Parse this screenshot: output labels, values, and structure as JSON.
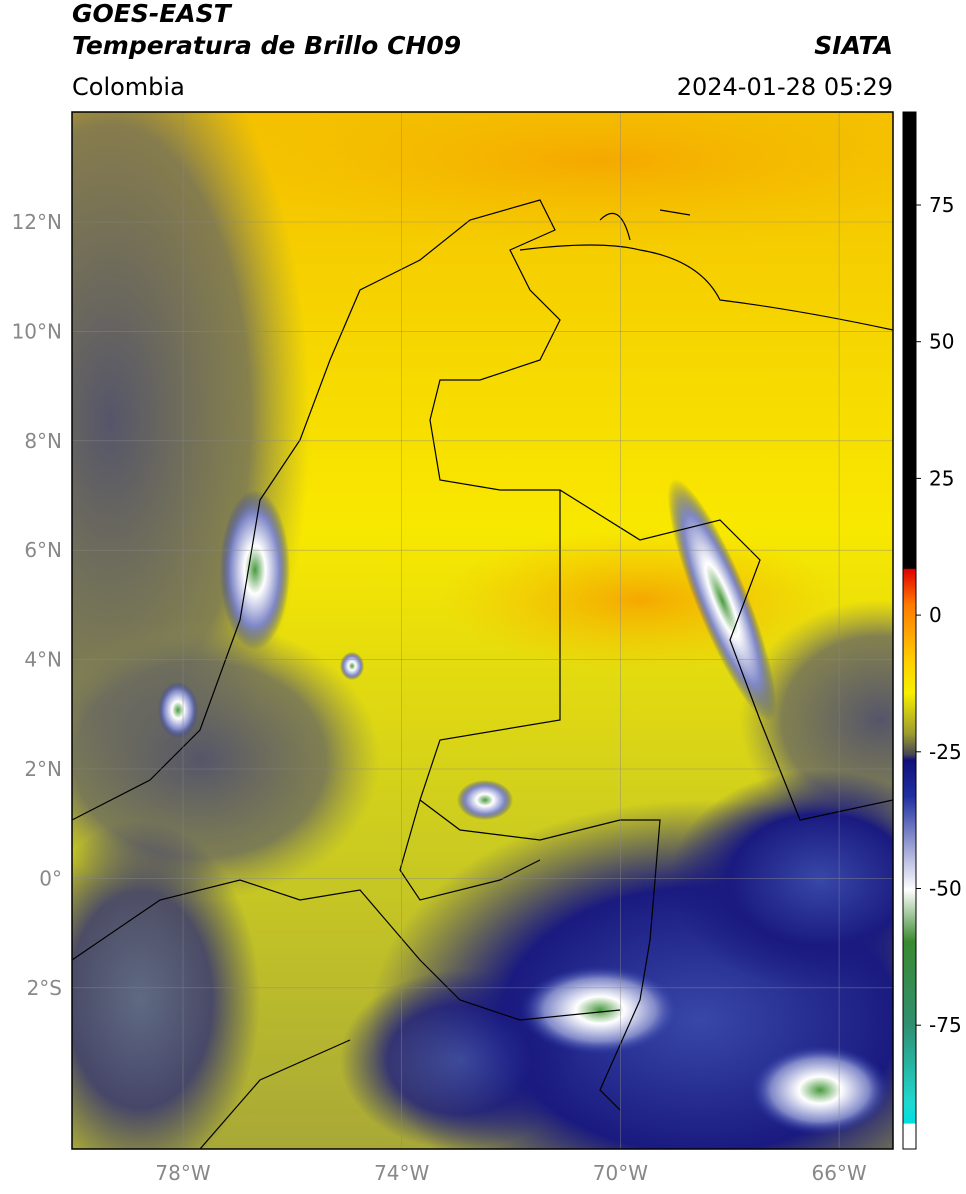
{
  "header": {
    "title": "GOES-EAST",
    "subtitle": "Temperatura de Brillo CH09",
    "region": "Colombia",
    "source": "SIATA",
    "datetime": "2024-01-28 05:29"
  },
  "map": {
    "lat_ticks": [
      "12°N",
      "10°N",
      "8°N",
      "6°N",
      "4°N",
      "2°N",
      "0°",
      "2°S"
    ],
    "lon_ticks": [
      "78°W",
      "74°W",
      "70°W",
      "66°W"
    ]
  },
  "colorbar": {
    "ticks": [
      "75",
      "50",
      "25",
      "0",
      "-25",
      "-50",
      "-75"
    ]
  }
}
